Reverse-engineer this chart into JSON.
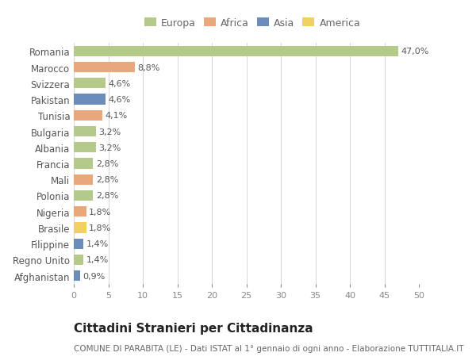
{
  "countries": [
    "Romania",
    "Marocco",
    "Svizzera",
    "Pakistan",
    "Tunisia",
    "Bulgaria",
    "Albania",
    "Francia",
    "Mali",
    "Polonia",
    "Nigeria",
    "Brasile",
    "Filippine",
    "Regno Unito",
    "Afghanistan"
  ],
  "values": [
    47.0,
    8.8,
    4.6,
    4.6,
    4.1,
    3.2,
    3.2,
    2.8,
    2.8,
    2.8,
    1.8,
    1.8,
    1.4,
    1.4,
    0.9
  ],
  "labels": [
    "47,0%",
    "8,8%",
    "4,6%",
    "4,6%",
    "4,1%",
    "3,2%",
    "3,2%",
    "2,8%",
    "2,8%",
    "2,8%",
    "1,8%",
    "1,8%",
    "1,4%",
    "1,4%",
    "0,9%"
  ],
  "colors": [
    "#b5c98a",
    "#e8a87c",
    "#b5c98a",
    "#6b8cba",
    "#e8a87c",
    "#b5c98a",
    "#b5c98a",
    "#b5c98a",
    "#e8a87c",
    "#b5c98a",
    "#e8a87c",
    "#f0d060",
    "#6b8cba",
    "#b5c98a",
    "#6b8cba"
  ],
  "legend_labels": [
    "Europa",
    "Africa",
    "Asia",
    "America"
  ],
  "legend_colors": [
    "#b5c98a",
    "#e8a87c",
    "#6b8cba",
    "#f0d060"
  ],
  "xlim": [
    0,
    50
  ],
  "xticks": [
    0,
    5,
    10,
    15,
    20,
    25,
    30,
    35,
    40,
    45,
    50
  ],
  "title": "Cittadini Stranieri per Cittadinanza",
  "subtitle": "COMUNE DI PARABITA (LE) - Dati ISTAT al 1° gennaio di ogni anno - Elaborazione TUTTITALIA.IT",
  "background_color": "#ffffff",
  "grid_color": "#d5d5d5",
  "bar_label_fontsize": 8,
  "ytick_fontsize": 8.5,
  "xtick_fontsize": 8,
  "legend_fontsize": 9,
  "title_fontsize": 11,
  "subtitle_fontsize": 7.5
}
